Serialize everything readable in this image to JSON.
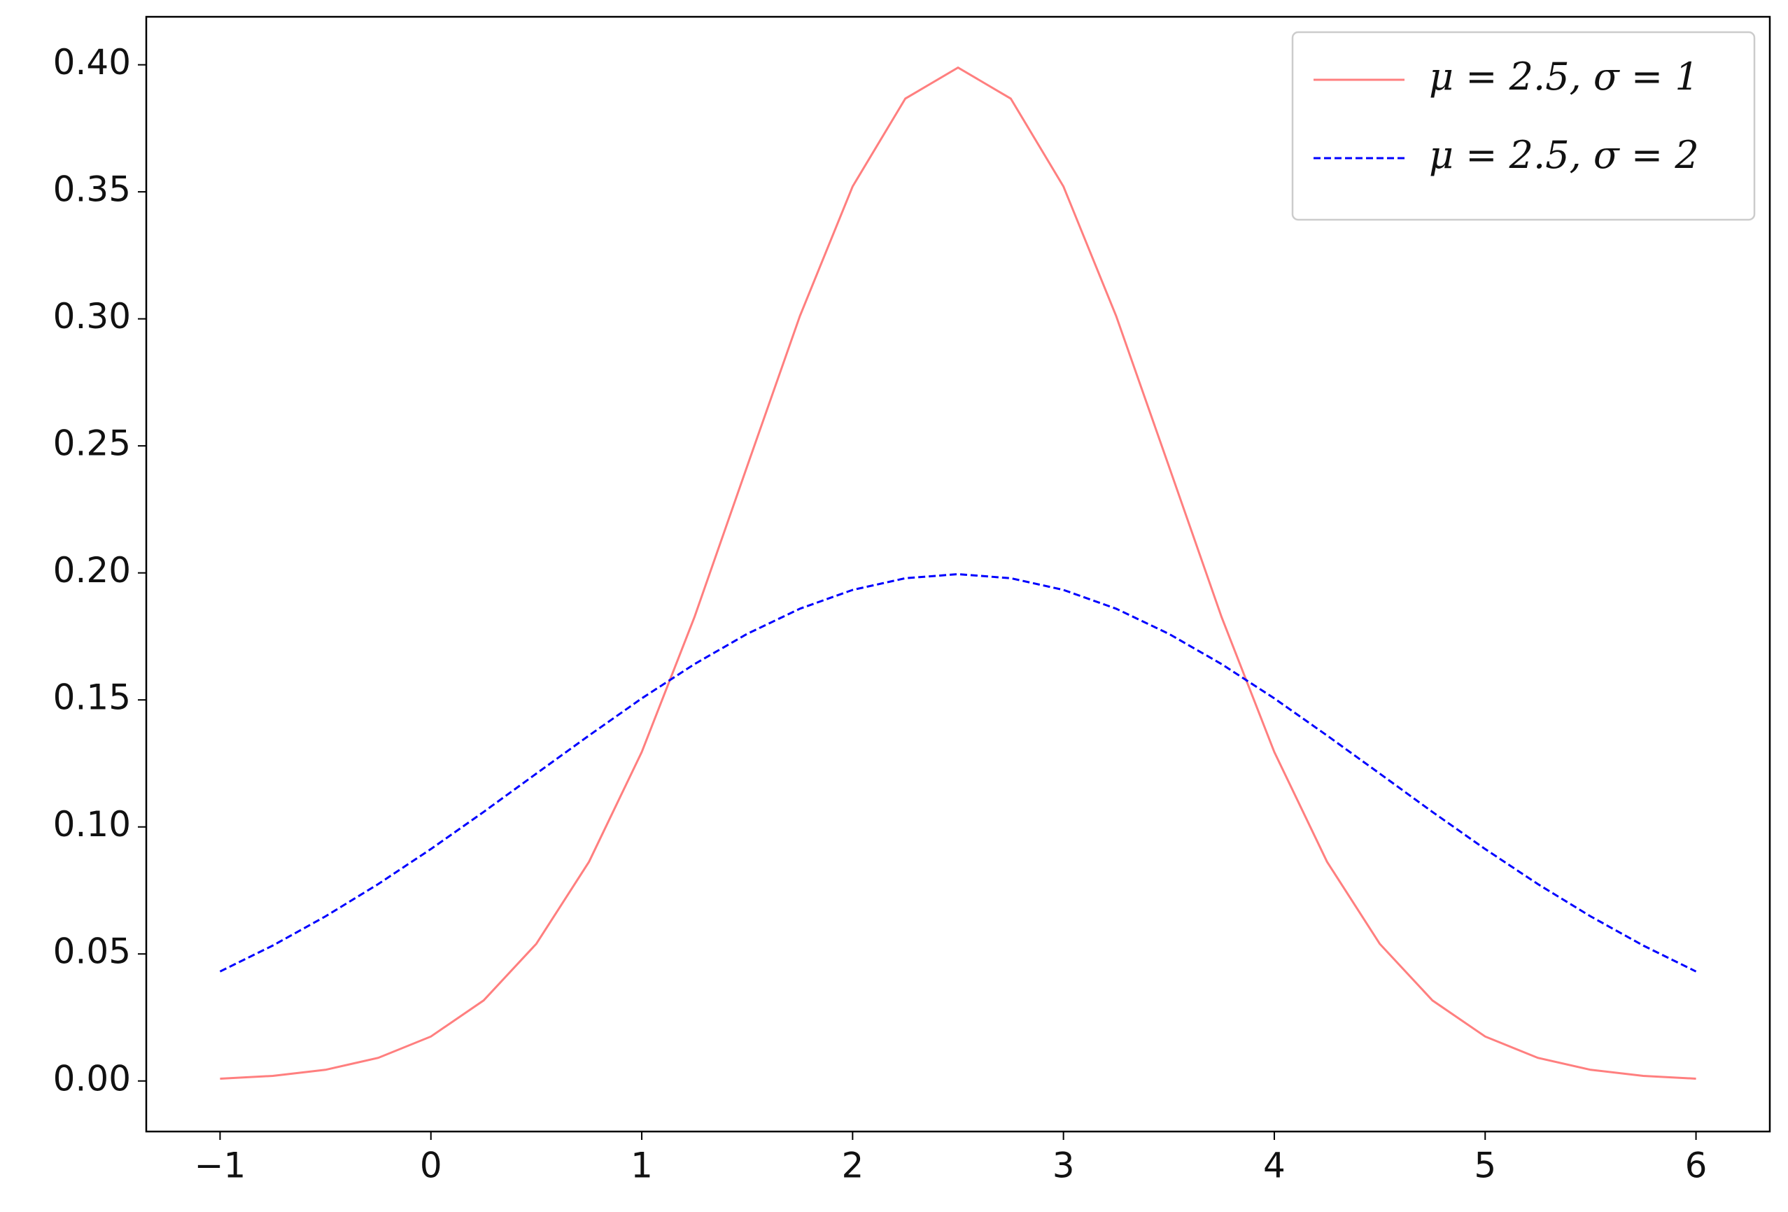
{
  "chart_data": {
    "type": "line",
    "x": [
      -1,
      -0.75,
      -0.5,
      -0.25,
      0,
      0.25,
      0.5,
      0.75,
      1,
      1.25,
      1.5,
      1.75,
      2,
      2.25,
      2.5,
      2.75,
      3,
      3.25,
      3.5,
      3.75,
      4,
      4.25,
      4.5,
      4.75,
      5,
      5.25,
      5.5,
      5.75,
      6
    ],
    "series": [
      {
        "name": "μ = 2.5, σ = 1",
        "color": "#ff7f7f",
        "linestyle": "solid",
        "values": [
          0.0009,
          0.002,
          0.0044,
          0.0091,
          0.0175,
          0.0317,
          0.054,
          0.0863,
          0.1295,
          0.1826,
          0.242,
          0.3011,
          0.3521,
          0.3867,
          0.3989,
          0.3867,
          0.3521,
          0.3011,
          0.242,
          0.1826,
          0.1295,
          0.0863,
          0.054,
          0.0317,
          0.0175,
          0.0091,
          0.0044,
          0.002,
          0.0009
        ]
      },
      {
        "name": "μ = 2.5, σ = 2",
        "color": "#0000ff",
        "linestyle": "dashed",
        "values": [
          0.0431,
          0.0533,
          0.0648,
          0.0775,
          0.0913,
          0.1059,
          0.121,
          0.136,
          0.1506,
          0.1641,
          0.176,
          0.1859,
          0.1933,
          0.1979,
          0.1995,
          0.1979,
          0.1933,
          0.1859,
          0.176,
          0.1641,
          0.1506,
          0.136,
          0.121,
          0.1059,
          0.0913,
          0.0775,
          0.0648,
          0.0533,
          0.0431
        ]
      }
    ],
    "xlim": [
      -1.35,
      6.35
    ],
    "xticks": [
      {
        "value": -1,
        "label": "−1"
      },
      0,
      1,
      2,
      3,
      4,
      5,
      6
    ],
    "ylim": [
      -0.0199,
      0.4189
    ],
    "yticks": [
      {
        "value": 0,
        "label": "0.00"
      },
      {
        "value": 0.05,
        "label": "0.05"
      },
      {
        "value": 0.1,
        "label": "0.10"
      },
      {
        "value": 0.15,
        "label": "0.15"
      },
      {
        "value": 0.2,
        "label": "0.20"
      },
      {
        "value": 0.25,
        "label": "0.25"
      },
      {
        "value": 0.3,
        "label": "0.30"
      },
      {
        "value": 0.35,
        "label": "0.35"
      },
      {
        "value": 0.4,
        "label": "0.40"
      }
    ],
    "grid": false,
    "legend": "upper right"
  }
}
